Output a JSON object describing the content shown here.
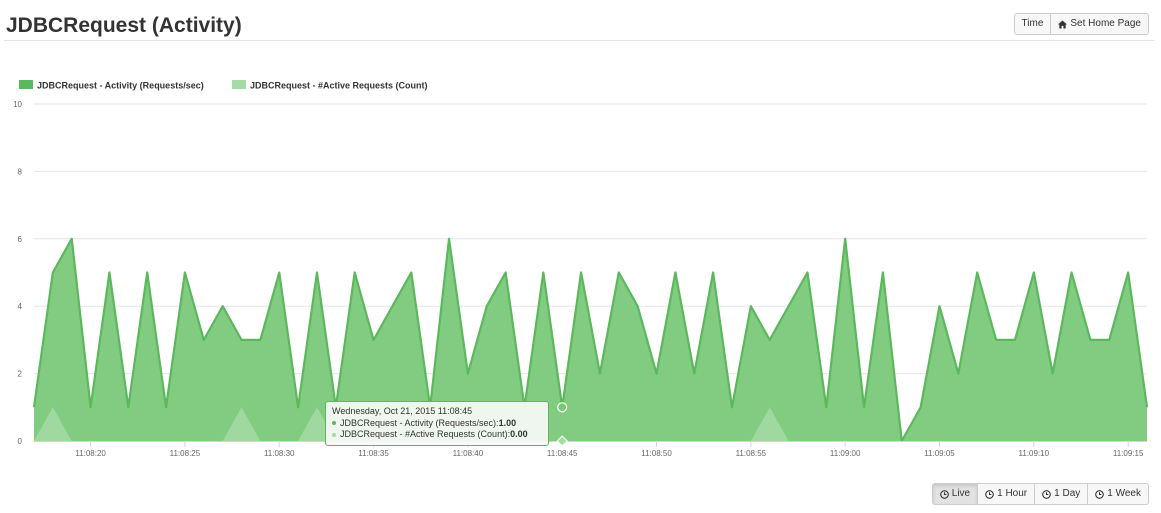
{
  "header": {
    "title": "JDBCRequest (Activity)"
  },
  "toolbar": {
    "time_label": "Time",
    "home_label": "Set Home Page"
  },
  "range_buttons": {
    "live": "Live",
    "hour": "1 Hour",
    "day": "1 Day",
    "week": "1 Week",
    "selected": "live"
  },
  "tooltip": {
    "date": "Wednesday, Oct 21, 2015 11:08:45",
    "series1_label": "JDBCRequest - Activity (Requests/sec): ",
    "series1_value": "1.00",
    "series2_label": "JDBCRequest - #Active Requests (Count): ",
    "series2_value": "0.00"
  },
  "colors": {
    "series1": "#5cb85c",
    "series1_fill": "#7ac97a",
    "series2": "#a5dba5",
    "border": "#5cb85c"
  },
  "chart_data": {
    "type": "area",
    "title": "",
    "xlabel": "",
    "ylabel": "",
    "ylim": [
      0,
      10
    ],
    "yticks": [
      0,
      2,
      4,
      6,
      8,
      10
    ],
    "x_start": "11:08:17",
    "x_step_seconds": 1,
    "xtick_labels": [
      "11:08:20",
      "11:08:25",
      "11:08:30",
      "11:08:35",
      "11:08:40",
      "11:08:45",
      "11:08:50",
      "11:08:55",
      "11:09:00",
      "11:09:05",
      "11:09:10",
      "11:09:15"
    ],
    "legend_position": "top-left",
    "grid": true,
    "series": [
      {
        "name": "JDBCRequest - Activity (Requests/sec)",
        "values": [
          1,
          5,
          6,
          1,
          5,
          1,
          5,
          1,
          5,
          3,
          4,
          3,
          3,
          5,
          1,
          5,
          1,
          5,
          3,
          4,
          5,
          1,
          6,
          2,
          4,
          5,
          1,
          5,
          1,
          5,
          2,
          5,
          4,
          2,
          5,
          2,
          5,
          1,
          4,
          3,
          4,
          5,
          1,
          6,
          1,
          5,
          0,
          1,
          4,
          2,
          5,
          3,
          3,
          5,
          2,
          5,
          3,
          3,
          5,
          1
        ]
      },
      {
        "name": "JDBCRequest - #Active Requests (Count)",
        "values": [
          0,
          1,
          0,
          0,
          0,
          0,
          0,
          0,
          0,
          0,
          0,
          1,
          0,
          0,
          0,
          1,
          0,
          0,
          0,
          0,
          0,
          0,
          0,
          0,
          0,
          0,
          0,
          0,
          0,
          0,
          0,
          0,
          0,
          0,
          0,
          0,
          0,
          0,
          0,
          1,
          0,
          0,
          0,
          0,
          0,
          0,
          0,
          0,
          0,
          0,
          0,
          0,
          0,
          0,
          0,
          0,
          0,
          0,
          0,
          0
        ]
      }
    ],
    "highlight_index": 28
  }
}
